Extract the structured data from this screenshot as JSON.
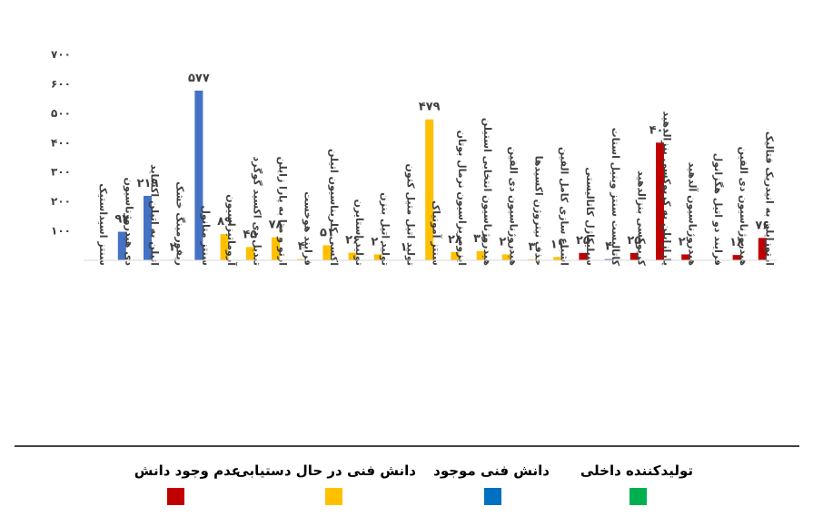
{
  "chart_data": {
    "type": "bar",
    "title": "",
    "xlabel": "",
    "ylabel": "",
    "ylim": [
      0,
      700
    ],
    "yticks": [
      "۰",
      "۱۰۰",
      "۲۰۰",
      "۳۰۰",
      "۴۰۰",
      "۵۰۰",
      "۶۰۰",
      "۷۰۰"
    ],
    "grid": false,
    "legend_position": "bottom",
    "categories": [
      "سنتز اسیداستیک",
      "دی هیدروژناسیون",
      "اتیلن به اتیلن اکساید",
      "ریفورمینگ خشک",
      "سنتز متانول",
      "آروماتیزاسیون",
      "تبدیل دی اکسید گوگرد",
      "ارتو و متا به پارا زایلن",
      "فرایند هوخست",
      "اکسی کلریناسیون اتیلن",
      "تولید استایرن",
      "تولید اتیل بنزن",
      "تولید اتیل متیل کتون",
      "سنتز آمونیاک",
      "ایزومریزاسیون نرمال بوتان",
      "هیدروژناسیون انتخابی استیلن",
      "هیدروژناسیون دی الفین",
      "حذف نیتروژن اکسیدها",
      "اشباع سازی کامل الفین",
      "سیلیکاژل کاتالیستی",
      "کاتالیست سنتز وینیل استات",
      "کریوکسی بنزالدهید",
      "پارازایلن به کریوکسی بنزالدهید",
      "هیدروژناسیون آلدهید",
      "فرایند دو اتیل هگزانول",
      "هیدروژناسیون دی الفین",
      "ارتوزایلن به انیدریک فتالیک"
    ],
    "values": [
      0,
      97,
      219,
      2,
      577,
      89,
      45,
      78,
      4,
      51,
      26,
      20,
      1,
      479,
      28,
      31,
      20,
      3,
      11,
      25,
      4,
      25,
      400,
      20,
      0,
      18,
      76
    ],
    "value_labels": [
      "",
      "۹۷",
      "۲۱۹",
      "۲",
      "۵۷۷",
      "۸۹",
      "۴۵",
      "۷۸",
      "۴",
      "۵۱",
      "۲۶",
      "۲۰",
      "۱",
      "۴۷۹",
      "۲۸",
      "۳۱",
      "۲۰",
      "۳",
      "۱۱",
      "۲۵",
      "۴",
      "۲۵",
      "۴۰۰",
      "۲۰",
      "",
      "۱۸",
      "۷۶"
    ],
    "groups": [
      "blue",
      "blue",
      "blue",
      "blue",
      "blue",
      "yellow",
      "yellow",
      "yellow",
      "yellow",
      "yellow",
      "yellow",
      "yellow",
      "yellow",
      "yellow",
      "yellow",
      "yellow",
      "yellow",
      "yellow",
      "yellow",
      "red",
      "blue",
      "red",
      "red",
      "red",
      "red",
      "red",
      "red"
    ],
    "colors": {
      "blue": "#4472C4",
      "yellow": "#FFC000",
      "red": "#C00000",
      "green": "#00B050",
      "darkblue": "#0070C0"
    }
  },
  "legend": [
    {
      "label": "عدم وجود دانش",
      "color": "#C00000"
    },
    {
      "label": "دانش فنی در حال دستیابی",
      "color": "#FFC000"
    },
    {
      "label": "دانش فنی موجود",
      "color": "#0070C0"
    },
    {
      "label": "تولیدکننده داخلی",
      "color": "#00B050"
    }
  ]
}
